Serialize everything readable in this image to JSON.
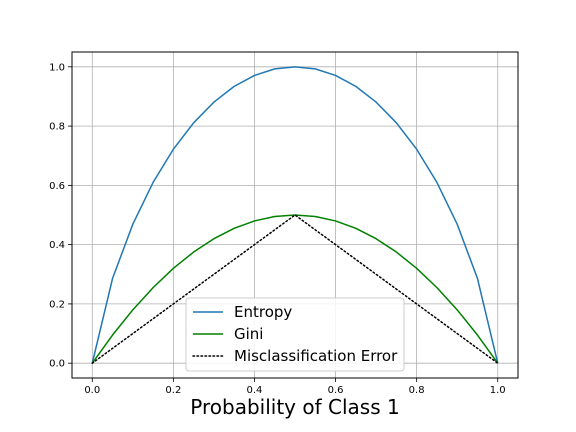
{
  "chart_data": {
    "type": "line",
    "title": "",
    "xlabel": "Probability of Class 1",
    "ylabel": "",
    "xlim": [
      -0.05,
      1.05
    ],
    "ylim": [
      -0.05,
      1.05
    ],
    "grid": true,
    "legend_position": "lower-center",
    "x_ticks": [
      0.0,
      0.2,
      0.4,
      0.6,
      0.8,
      1.0
    ],
    "y_ticks": [
      0.0,
      0.2,
      0.4,
      0.6,
      0.8,
      1.0
    ],
    "x_tick_labels": [
      "0.0",
      "0.2",
      "0.4",
      "0.6",
      "0.8",
      "1.0"
    ],
    "y_tick_labels": [
      "0.0",
      "0.2",
      "0.4",
      "0.6",
      "0.8",
      "1.0"
    ],
    "x": [
      0.0,
      0.05,
      0.1,
      0.15,
      0.2,
      0.25,
      0.3,
      0.35,
      0.4,
      0.45,
      0.5,
      0.55,
      0.6,
      0.65,
      0.7,
      0.75,
      0.8,
      0.85,
      0.9,
      0.95,
      1.0
    ],
    "series": [
      {
        "name": "Entropy",
        "color": "#1f77b4",
        "style": "solid",
        "values": [
          0.0,
          0.286,
          0.469,
          0.61,
          0.722,
          0.811,
          0.881,
          0.934,
          0.971,
          0.993,
          1.0,
          0.993,
          0.971,
          0.934,
          0.881,
          0.811,
          0.722,
          0.61,
          0.469,
          0.286,
          0.0
        ]
      },
      {
        "name": "Gini",
        "color": "#008000",
        "style": "solid",
        "values": [
          0.0,
          0.095,
          0.18,
          0.255,
          0.32,
          0.375,
          0.42,
          0.455,
          0.48,
          0.495,
          0.5,
          0.495,
          0.48,
          0.455,
          0.42,
          0.375,
          0.32,
          0.255,
          0.18,
          0.095,
          0.0
        ]
      },
      {
        "name": "Misclassification Error",
        "color": "#000000",
        "style": "dotted",
        "values": [
          0.0,
          0.05,
          0.1,
          0.15,
          0.2,
          0.25,
          0.3,
          0.35,
          0.4,
          0.45,
          0.5,
          0.45,
          0.4,
          0.35,
          0.3,
          0.25,
          0.2,
          0.15,
          0.1,
          0.05,
          0.0
        ]
      }
    ]
  }
}
